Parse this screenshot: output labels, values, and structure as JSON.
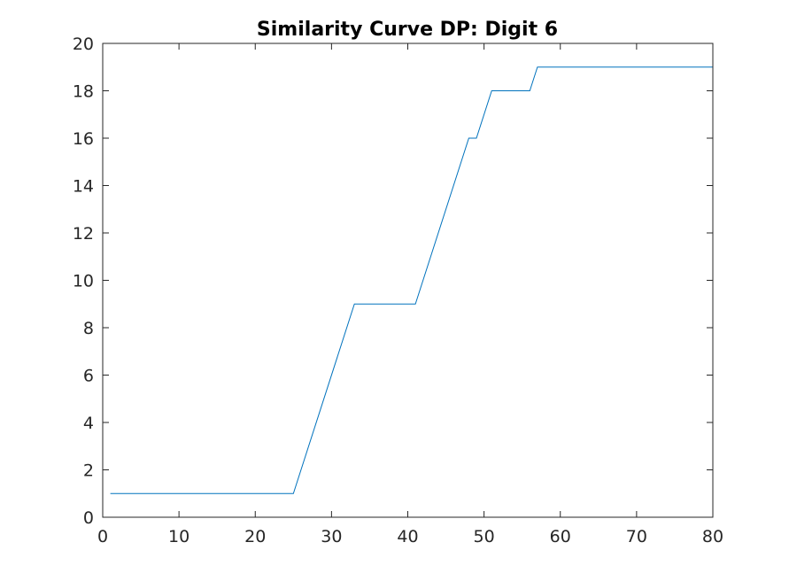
{
  "chart_data": {
    "type": "line",
    "title": "Similarity Curve DP: Digit 6",
    "xlabel": "",
    "ylabel": "",
    "xlim": [
      0,
      80
    ],
    "ylim": [
      0,
      20
    ],
    "xticks": [
      0,
      10,
      20,
      30,
      40,
      50,
      60,
      70,
      80
    ],
    "yticks": [
      0,
      2,
      4,
      6,
      8,
      10,
      12,
      14,
      16,
      18,
      20
    ],
    "grid": false,
    "legend": "none",
    "series": [
      {
        "color": "#0072BD",
        "x": [
          1,
          25,
          33,
          41,
          48,
          49,
          51,
          56,
          57,
          80
        ],
        "y": [
          1,
          1,
          9,
          9,
          16,
          16,
          18,
          18,
          19,
          19
        ]
      }
    ]
  }
}
